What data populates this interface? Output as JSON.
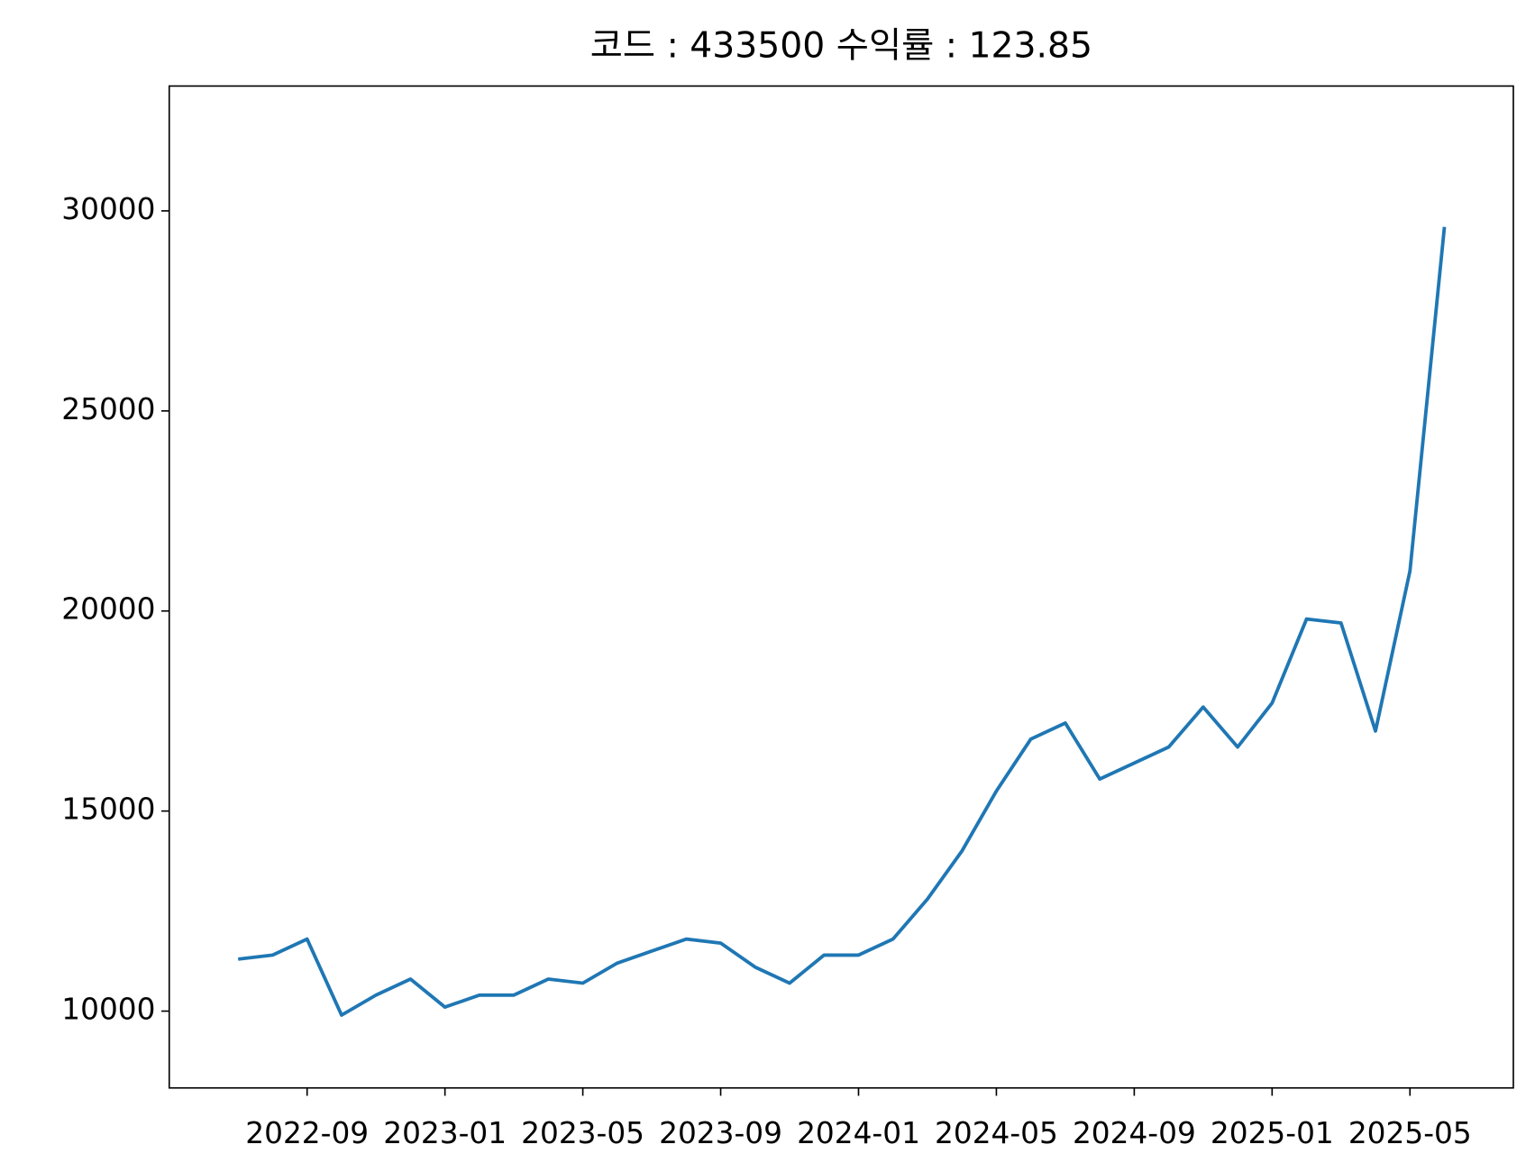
{
  "chart_data": {
    "type": "line",
    "title": "코드 : 433500 수익률 : 123.85",
    "x": [
      "2022-07",
      "2022-08",
      "2022-09",
      "2022-10",
      "2022-11",
      "2022-12",
      "2023-01",
      "2023-02",
      "2023-03",
      "2023-04",
      "2023-05",
      "2023-06",
      "2023-07",
      "2023-08",
      "2023-09",
      "2023-10",
      "2023-11",
      "2023-12",
      "2024-01",
      "2024-02",
      "2024-03",
      "2024-04",
      "2024-05",
      "2024-06",
      "2024-07",
      "2024-08",
      "2024-09",
      "2024-10",
      "2024-11",
      "2024-12",
      "2025-01",
      "2025-02",
      "2025-03",
      "2025-04",
      "2025-05",
      "2025-06"
    ],
    "series": [
      {
        "name": "433500",
        "color": "#1f77b4",
        "values": [
          11300,
          11400,
          11800,
          9900,
          10400,
          10800,
          10100,
          10400,
          10400,
          10800,
          10700,
          11200,
          11500,
          11800,
          11700,
          11100,
          10700,
          11400,
          11400,
          11800,
          12800,
          14000,
          15500,
          16800,
          17200,
          15800,
          16200,
          16600,
          17600,
          16600,
          17700,
          19800,
          19700,
          17000,
          21000,
          29600
        ]
      }
    ],
    "xlim": [
      "2022-05",
      "2025-08"
    ],
    "xticks": [
      "2022-09",
      "2023-01",
      "2023-05",
      "2023-09",
      "2024-01",
      "2024-05",
      "2024-09",
      "2025-01",
      "2025-05"
    ],
    "ylim": [
      8080,
      33120
    ],
    "yticks": [
      10000,
      15000,
      20000,
      25000,
      30000
    ]
  }
}
